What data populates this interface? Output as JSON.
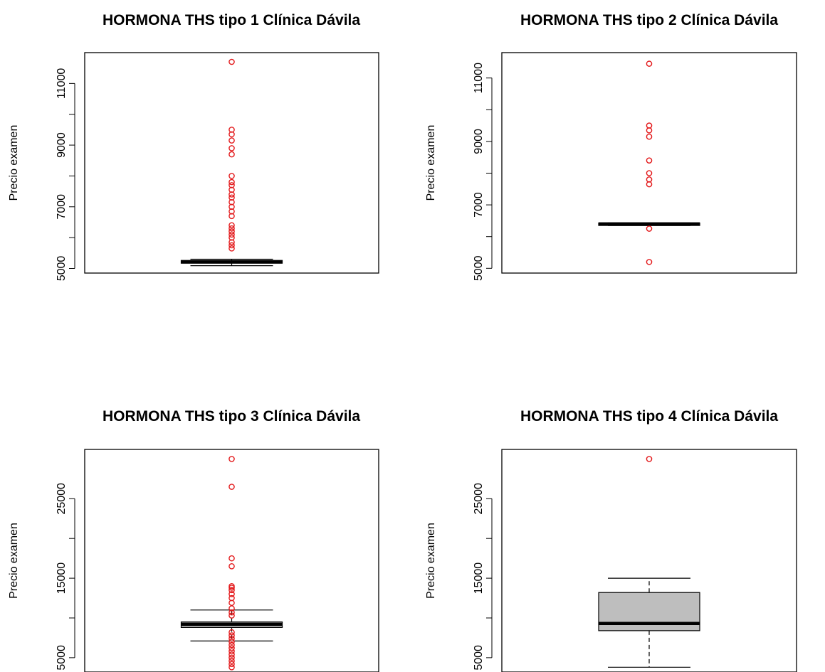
{
  "figure": {
    "panels_layout": "2x2 grid",
    "outlier_color": "#e31a1c",
    "box_fill": "#bebebe"
  },
  "chart_data": [
    {
      "type": "boxplot",
      "title": "HORMONA THS tipo 1 Clínica Dávila",
      "ylabel": "Precio examen",
      "ylim": [
        4850,
        12000
      ],
      "yticks": [
        5000,
        7000,
        9000,
        11000
      ],
      "ytick_labels": [
        "5000",
        "7000",
        "9000",
        "11000"
      ],
      "box": {
        "whisker_low": 5090,
        "q1": 5170,
        "median": 5210,
        "q3": 5260,
        "whisker_high": 5300
      },
      "outliers": [
        5650,
        5750,
        5850,
        6000,
        6100,
        6200,
        6300,
        6400,
        6700,
        6850,
        7000,
        7150,
        7300,
        7400,
        7550,
        7700,
        7800,
        8000,
        8700,
        8900,
        9150,
        9350,
        9500,
        11700
      ]
    },
    {
      "type": "boxplot",
      "title": "HORMONA THS tipo 2 Clínica Dávila",
      "ylabel": "Precio examen",
      "ylim": [
        4850,
        11800
      ],
      "yticks": [
        5000,
        7000,
        9000,
        11000
      ],
      "ytick_labels": [
        "5000",
        "7000",
        "9000",
        "11000"
      ],
      "box": {
        "whisker_low": 6350,
        "q1": 6350,
        "median": 6400,
        "q3": 6430,
        "whisker_high": 6430
      },
      "outliers": [
        5200,
        6250,
        7650,
        7800,
        8000,
        8400,
        9150,
        9350,
        9500,
        11450
      ]
    },
    {
      "type": "boxplot",
      "title": "HORMONA THS tipo 3 Clínica Dávila",
      "ylabel": "Precio examen",
      "ylim": [
        3200,
        31200
      ],
      "yticks": [
        5000,
        15000,
        25000
      ],
      "ytick_labels": [
        "5000",
        "15000",
        "25000"
      ],
      "box": {
        "whisker_low": 7100,
        "q1": 8800,
        "median": 9200,
        "q3": 9500,
        "whisker_high": 11000
      },
      "outliers": [
        3800,
        4200,
        4600,
        5000,
        5400,
        5800,
        6200,
        6600,
        7000,
        7400,
        7800,
        8200,
        10300,
        10700,
        11200,
        11900,
        12500,
        13000,
        13500,
        13800,
        14000,
        16500,
        17500,
        26500,
        30000
      ]
    },
    {
      "type": "boxplot",
      "title": "HORMONA THS tipo 4 Clínica Dávila",
      "ylabel": "Precio examen",
      "ylim": [
        3200,
        31200
      ],
      "yticks": [
        5000,
        15000,
        25000
      ],
      "ytick_labels": [
        "5000",
        "15000",
        "25000"
      ],
      "box": {
        "whisker_low": 3800,
        "q1": 8400,
        "median": 9300,
        "q3": 13200,
        "whisker_high": 15000
      },
      "outliers": [
        30000
      ]
    }
  ]
}
